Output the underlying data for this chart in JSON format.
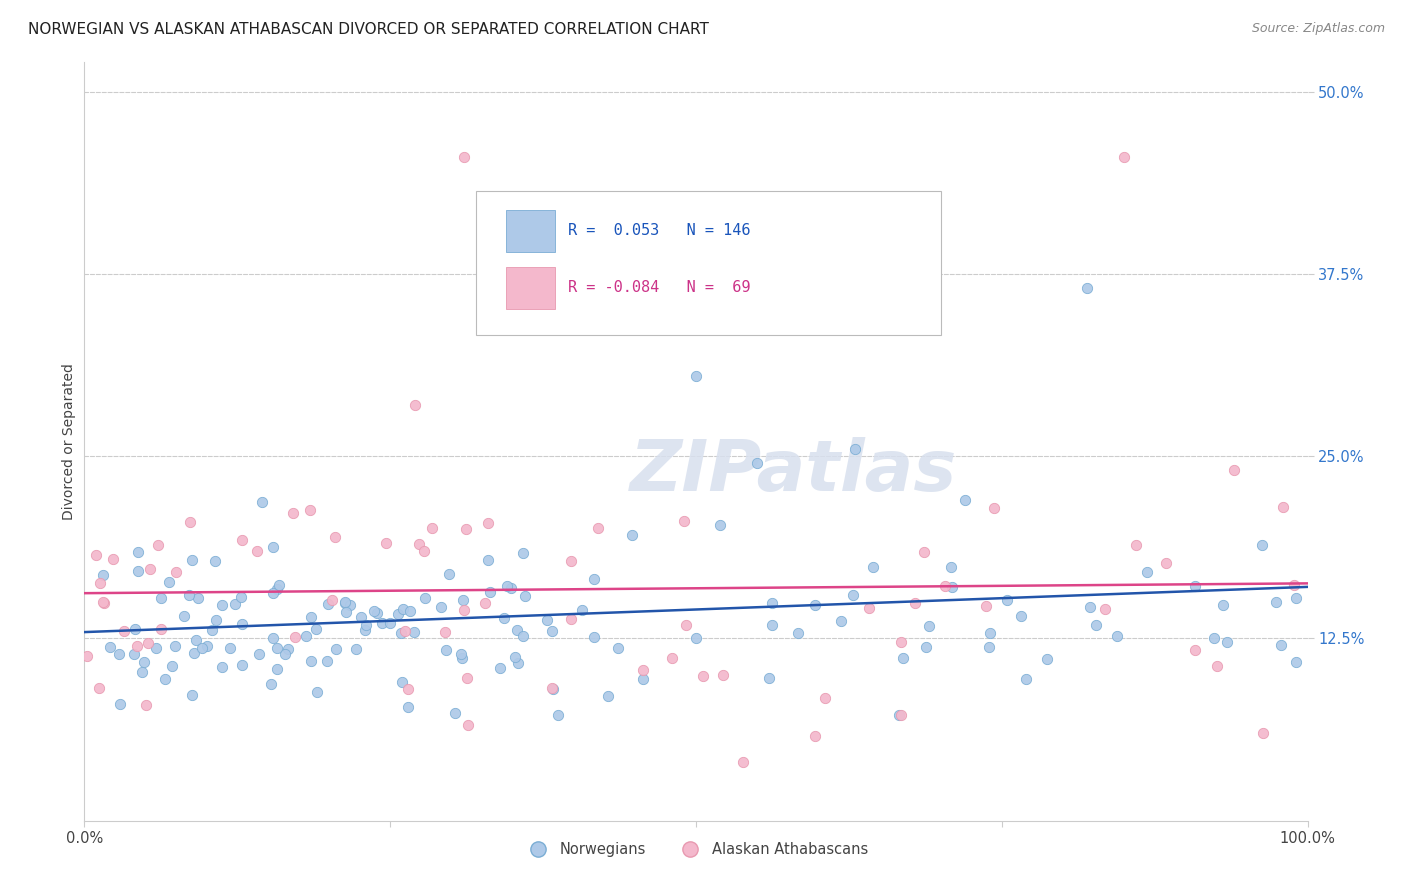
{
  "title": "NORWEGIAN VS ALASKAN ATHABASCAN DIVORCED OR SEPARATED CORRELATION CHART",
  "source": "Source: ZipAtlas.com",
  "ylabel": "Divorced or Separated",
  "watermark": "ZIPatlas",
  "xlim": [
    0,
    1.0
  ],
  "ylim": [
    0.0,
    0.52
  ],
  "xtick_positions": [
    0.0,
    0.25,
    0.5,
    0.75,
    1.0
  ],
  "xtick_labels": [
    "0.0%",
    "",
    "",
    "",
    "100.0%"
  ],
  "ytick_values": [
    0.125,
    0.25,
    0.375,
    0.5
  ],
  "ytick_labels": [
    "12.5%",
    "25.0%",
    "37.5%",
    "50.0%"
  ],
  "legend_r_blue": "R =  0.053",
  "legend_n_blue": "N = 146",
  "legend_r_pink": "R = -0.084",
  "legend_n_pink": "N =  69",
  "blue_scatter_color": "#aec9e8",
  "pink_scatter_color": "#f4b8cc",
  "blue_edge_color": "#7aadd4",
  "pink_edge_color": "#e899b0",
  "blue_line_color": "#2255aa",
  "pink_line_color": "#dd4488",
  "legend_label_blue": "Norwegians",
  "legend_label_pink": "Alaskan Athabascans",
  "background_color": "#ffffff",
  "grid_color": "#cccccc",
  "title_color": "#222222",
  "source_color": "#888888",
  "ytick_color": "#3377cc",
  "xtick_color": "#444444",
  "ylabel_color": "#444444",
  "title_fontsize": 11,
  "label_fontsize": 10,
  "tick_fontsize": 10.5,
  "source_fontsize": 9,
  "watermark_color": "#d8e0ee",
  "seed": 42
}
